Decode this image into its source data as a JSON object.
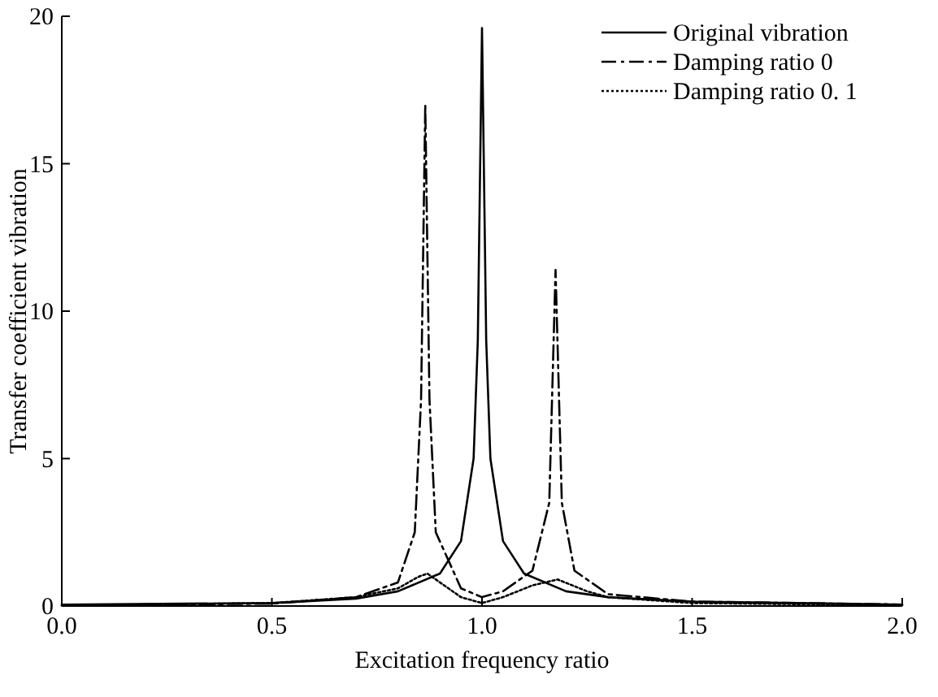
{
  "chart_data": {
    "type": "line",
    "xlabel": "Excitation frequency ratio",
    "ylabel": "Transfer coefficient vibration",
    "xlim": [
      0,
      2
    ],
    "xticks": [
      {
        "value": 0,
        "label": "0.0"
      },
      {
        "value": 0.5,
        "label": "0.5"
      },
      {
        "value": 1,
        "label": "1.0"
      },
      {
        "value": 1.5,
        "label": "1.5"
      },
      {
        "value": 2,
        "label": "2.0"
      }
    ],
    "ylim": [
      0,
      20
    ],
    "yticks": [
      0,
      5,
      10,
      15,
      20
    ],
    "grid": false,
    "legend": "top right",
    "series": [
      {
        "name": "Original vibration",
        "color": "#000000",
        "line_style": "solid",
        "x": [
          0,
          0.5,
          0.7,
          0.8,
          0.9,
          0.95,
          0.98,
          0.99,
          1.0,
          1.01,
          1.02,
          1.05,
          1.1,
          1.2,
          1.3,
          1.5,
          2.0
        ],
        "values": [
          0.05,
          0.1,
          0.25,
          0.5,
          1.1,
          2.2,
          5,
          9,
          19.6,
          9,
          5,
          2.2,
          1.1,
          0.5,
          0.3,
          0.15,
          0.05
        ]
      },
      {
        "name": "Damping ratio 0",
        "color": "#000000",
        "line_style": "dashed",
        "x": [
          0,
          0.5,
          0.7,
          0.8,
          0.84,
          0.855,
          0.865,
          0.875,
          0.89,
          0.95,
          1.0,
          1.05,
          1.12,
          1.16,
          1.175,
          1.19,
          1.22,
          1.3,
          1.5,
          2.0
        ],
        "values": [
          0.02,
          0.08,
          0.3,
          0.8,
          2.5,
          7,
          17,
          7,
          2.5,
          0.6,
          0.3,
          0.5,
          1.2,
          3.5,
          11.4,
          3.5,
          1.2,
          0.4,
          0.15,
          0.05
        ]
      },
      {
        "name": "Damping ratio 0. 1",
        "color": "#000000",
        "line_style": "dotted",
        "x": [
          0,
          0.5,
          0.7,
          0.8,
          0.85,
          0.87,
          0.9,
          0.95,
          1.0,
          1.05,
          1.12,
          1.18,
          1.25,
          1.3,
          1.5,
          2.0
        ],
        "values": [
          0.02,
          0.1,
          0.3,
          0.6,
          1.0,
          1.1,
          0.8,
          0.3,
          0.1,
          0.3,
          0.7,
          0.9,
          0.5,
          0.3,
          0.1,
          0.03
        ]
      }
    ]
  }
}
